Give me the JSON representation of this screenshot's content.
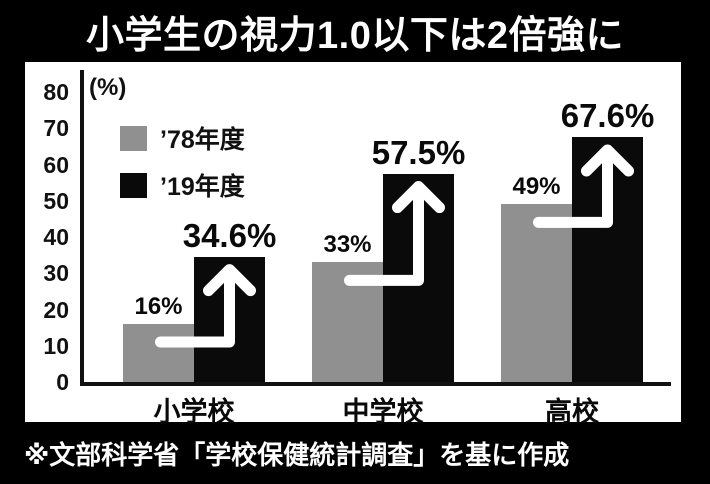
{
  "title": "小学生の視力1.0以下は2倍強に",
  "footer": "※文部科学省「学校保健統計調査」を基に作成",
  "colors": {
    "background": "#000000",
    "panel": "#ffffff",
    "series_1978": "#909090",
    "series_2019": "#0a0a0a",
    "arrow": "#ffffff",
    "axis": "#111111",
    "title_text": "#ffffff",
    "label_text": "#0a0a0a"
  },
  "chart_data": {
    "type": "bar",
    "title": "小学生の視力1.0以下は2倍強に",
    "categories": [
      "小学校",
      "中学校",
      "高校"
    ],
    "series": [
      {
        "name": "’78年度",
        "color_key": "series_1978",
        "values": [
          16,
          33,
          49
        ],
        "data_labels": [
          "16%",
          "33%",
          "49%"
        ]
      },
      {
        "name": "’19年度",
        "color_key": "series_2019",
        "values": [
          34.6,
          57.5,
          67.6
        ],
        "data_labels": [
          "34.6%",
          "57.5%",
          "67.6%"
        ]
      }
    ],
    "ylabel": "(%)",
    "ylim": [
      0,
      80
    ],
    "yticks": [
      80,
      70,
      60,
      50,
      40,
      30,
      20,
      10,
      0
    ],
    "grid": false,
    "legend_position": "upper-left",
    "annotations": [
      {
        "type": "elbow-arrow",
        "category": "小学校",
        "from_series": "’78年度",
        "to_series": "’19年度"
      },
      {
        "type": "elbow-arrow",
        "category": "中学校",
        "from_series": "’78年度",
        "to_series": "’19年度"
      },
      {
        "type": "elbow-arrow",
        "category": "高校",
        "from_series": "’78年度",
        "to_series": "’19年度"
      }
    ],
    "source_note": "※文部科学省「学校保健統計調査」を基に作成"
  }
}
